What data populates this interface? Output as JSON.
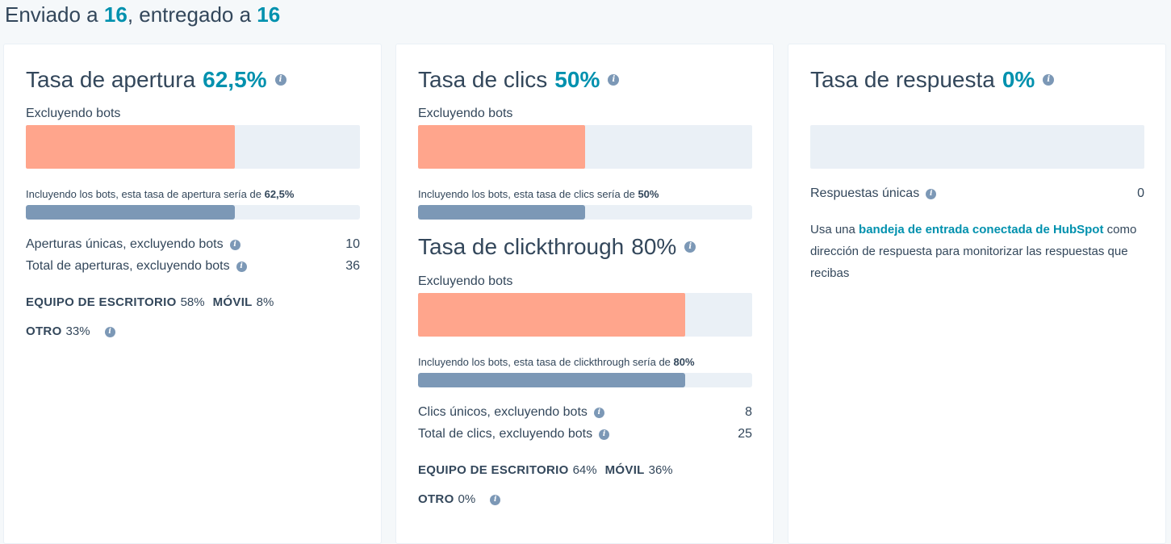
{
  "header": {
    "sent_prefix": "Enviado a",
    "sent_count": "16",
    "delivered_prefix": ", entregado a",
    "delivered_count": "16"
  },
  "open": {
    "title": "Tasa de apertura",
    "rate": "62,5%",
    "excl_label": "Excluyendo bots",
    "excl_fill": 0.625,
    "incl_prefix": "Incluyendo los bots, esta tasa de apertura sería de",
    "incl_value": "62,5%",
    "incl_fill": 0.625,
    "stats": [
      {
        "label": "Aperturas únicas, excluyendo bots",
        "value": "10"
      },
      {
        "label": "Total de aperturas, excluyendo bots",
        "value": "36"
      }
    ],
    "devices": {
      "desktop_label": "EQUIPO DE ESCRITORIO",
      "desktop_value": "58%",
      "mobile_label": "MÓVIL",
      "mobile_value": "8%",
      "other_label": "OTRO",
      "other_value": "33%"
    }
  },
  "click": {
    "title": "Tasa de clics",
    "rate": "50%",
    "excl_label": "Excluyendo bots",
    "excl_fill": 0.5,
    "incl_prefix": "Incluyendo los bots, esta tasa de clics sería de",
    "incl_value": "50%",
    "incl_fill": 0.5
  },
  "clickthrough": {
    "title": "Tasa de clickthrough",
    "rate": "80%",
    "excl_label": "Excluyendo bots",
    "excl_fill": 0.8,
    "incl_prefix": "Incluyendo los bots, esta tasa de clickthrough sería de",
    "incl_value": "80%",
    "incl_fill": 0.8,
    "stats": [
      {
        "label": "Clics únicos, excluyendo bots",
        "value": "8"
      },
      {
        "label": "Total de clics, excluyendo bots",
        "value": "25"
      }
    ],
    "devices": {
      "desktop_label": "EQUIPO DE ESCRITORIO",
      "desktop_value": "64%",
      "mobile_label": "MÓVIL",
      "mobile_value": "36%",
      "other_label": "OTRO",
      "other_value": "0%"
    }
  },
  "reply": {
    "title": "Tasa de respuesta",
    "rate": "0%",
    "fill": 0,
    "unique_label": "Respuestas únicas",
    "unique_value": "0",
    "text_before": "Usa una ",
    "link_text": "bandeja de entrada conectada de HubSpot",
    "text_after": " como dirección de respuesta para monitorizar las respuestas que recibas"
  },
  "colors": {
    "accent": "#0091ae",
    "bar_excl": "#ffa58c",
    "bar_incl": "#7c98b6",
    "track": "#eaf0f6",
    "text": "#33475b"
  },
  "icons": {
    "info": "info-icon"
  }
}
